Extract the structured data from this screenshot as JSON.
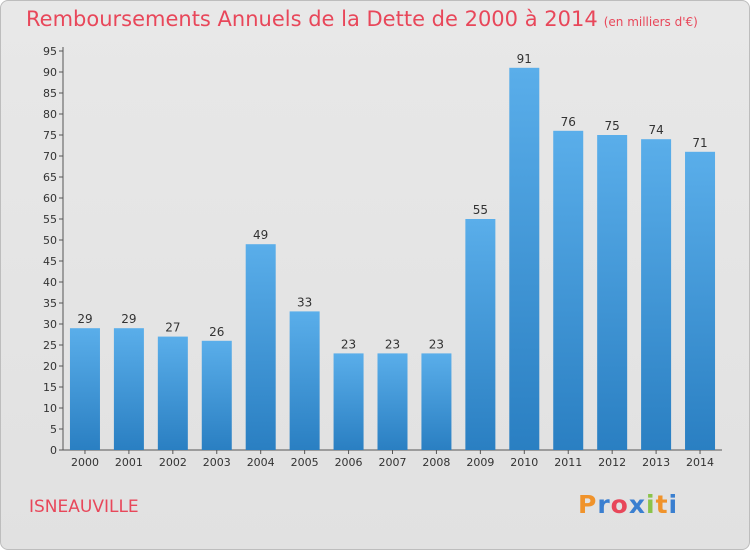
{
  "header": {
    "title": "Remboursements Annuels de la Dette de 2000 à 2014",
    "subtitle": "(en milliers d'€)"
  },
  "footer": {
    "city": "ISNEAUVILLE",
    "brand": "Proxiti"
  },
  "colors": {
    "title": "#e8475a",
    "bar_top": "#5aaeea",
    "bar_bottom": "#2a7fc2",
    "brand_letters": [
      "#f0932b",
      "#3a7fd0",
      "#e8475a",
      "#3a7fd0",
      "#8bc34a",
      "#f0932b",
      "#3a7fd0"
    ]
  },
  "chart_data": {
    "type": "bar",
    "title": "Remboursements Annuels de la Dette de 2000 à 2014",
    "subtitle": "(en milliers d'€)",
    "xlabel": "",
    "ylabel": "",
    "categories": [
      "2000",
      "2001",
      "2002",
      "2003",
      "2004",
      "2005",
      "2006",
      "2007",
      "2008",
      "2009",
      "2010",
      "2011",
      "2012",
      "2013",
      "2014"
    ],
    "values": [
      29,
      29,
      27,
      26,
      49,
      33,
      23,
      23,
      23,
      55,
      91,
      76,
      75,
      74,
      71
    ],
    "ylim": [
      0,
      95
    ],
    "yticks": [
      0,
      5,
      10,
      15,
      20,
      25,
      30,
      35,
      40,
      45,
      50,
      55,
      60,
      65,
      70,
      75,
      80,
      85,
      90,
      95
    ],
    "grid": false,
    "data_labels": true
  }
}
